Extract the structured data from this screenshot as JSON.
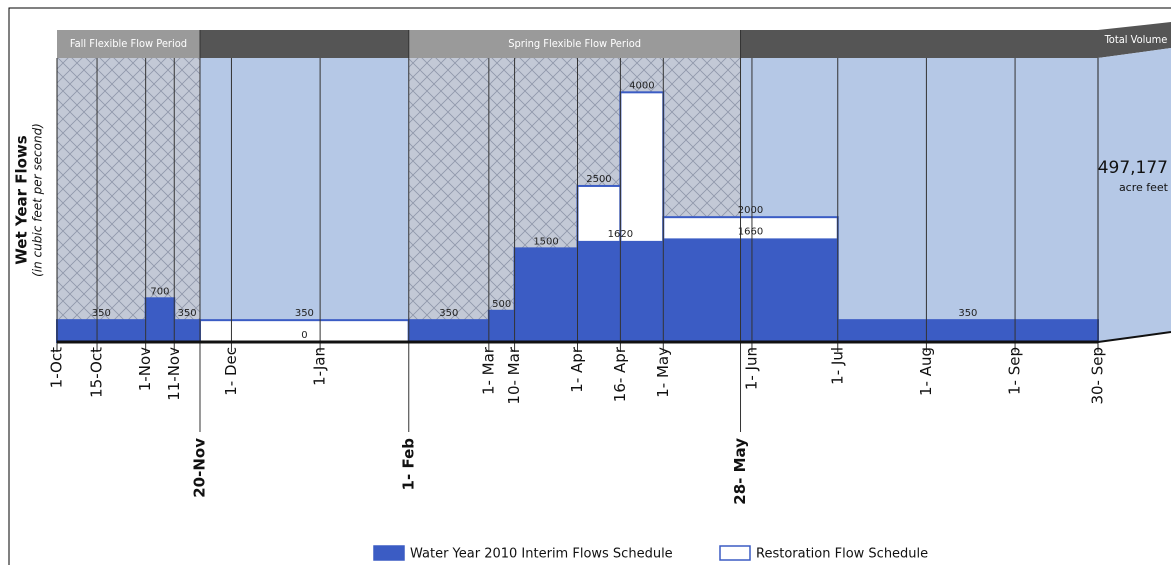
{
  "chart_data": {
    "type": "step",
    "y_label": "Wet Year Flows",
    "y_sublabel": "(in cubic feet per second)",
    "xlim": [
      0,
      364
    ],
    "ylim": [
      0,
      4550
    ],
    "xticks": [
      {
        "value": 0,
        "label": "1-Oct"
      },
      {
        "value": 14,
        "label": "15-Oct"
      },
      {
        "value": 31,
        "label": "1-Nov"
      },
      {
        "value": 41,
        "label": "11-Nov"
      },
      {
        "value": 50,
        "label": "20-Nov",
        "bold": true
      },
      {
        "value": 61,
        "label": "1- Dec"
      },
      {
        "value": 92,
        "label": "1-Jan"
      },
      {
        "value": 123,
        "label": "1- Feb",
        "bold": true
      },
      {
        "value": 151,
        "label": "1- Mar"
      },
      {
        "value": 160,
        "label": "10- Mar"
      },
      {
        "value": 182,
        "label": "1- Apr"
      },
      {
        "value": 197,
        "label": "16- Apr"
      },
      {
        "value": 212,
        "label": "1- May"
      },
      {
        "value": 239,
        "label": "28- May",
        "bold": true
      },
      {
        "value": 243,
        "label": "1- Jun"
      },
      {
        "value": 273,
        "label": "1- Jul"
      },
      {
        "value": 304,
        "label": "1- Aug"
      },
      {
        "value": 335,
        "label": "1- Sep"
      },
      {
        "value": 364,
        "label": "30- Sep"
      }
    ],
    "periods": [
      {
        "label": "Fall Flexible Flow Period",
        "x": [
          0,
          50
        ]
      },
      {
        "label": "Spring Flexible Flow Period",
        "x": [
          123,
          239
        ]
      }
    ],
    "series": [
      {
        "name": "Water Year 2010 Interim Flows Schedule",
        "color": "#3b5cc4",
        "bins": [
          0,
          31,
          41,
          50,
          123,
          151,
          160,
          182,
          212,
          273,
          364
        ],
        "values": [
          350,
          700,
          350,
          0,
          350,
          500,
          1500,
          1620,
          1660,
          350
        ]
      },
      {
        "name": "Restoration Flow Schedule",
        "color": "#ffffff",
        "bins": [
          0,
          31,
          41,
          50,
          123,
          151,
          160,
          182,
          197,
          212,
          273,
          364
        ],
        "values": [
          350,
          700,
          350,
          350,
          350,
          500,
          1500,
          2500,
          4000,
          2000,
          350
        ]
      }
    ],
    "total_volume_label": "Total Volume",
    "total_volume": "497,177",
    "total_volume_unit": "acre feet"
  }
}
